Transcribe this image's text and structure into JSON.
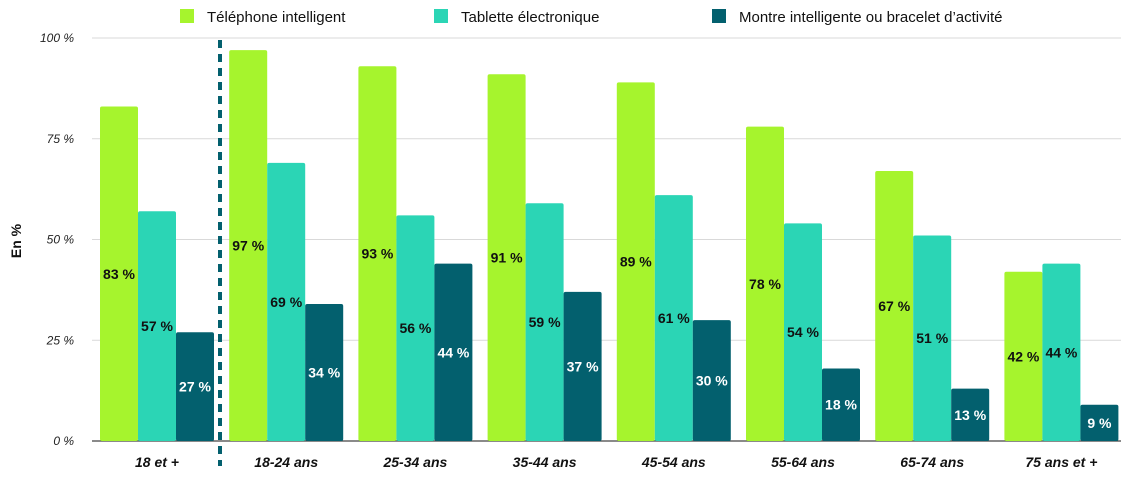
{
  "chart_data": {
    "type": "bar",
    "title": "",
    "xlabel": "",
    "ylabel": "En %",
    "ylim": [
      0,
      100
    ],
    "yticks": [
      0,
      25,
      50,
      75,
      100
    ],
    "ytick_labels": [
      "0 %",
      "25 %",
      "50 %",
      "75 %",
      "100 %"
    ],
    "categories": [
      "18 et +",
      "18-24 ans",
      "25-34 ans",
      "35-44 ans",
      "45-54 ans",
      "55-64 ans",
      "65-74 ans",
      "75 ans et +"
    ],
    "series": [
      {
        "name": "Téléphone intelligent",
        "color": "#a6f42d",
        "label_color": "#111111",
        "values": [
          83,
          97,
          93,
          91,
          89,
          78,
          67,
          42
        ],
        "value_labels": [
          "83 %",
          "97 %",
          "93 %",
          "91 %",
          "89 %",
          "78 %",
          "67 %",
          "42 %"
        ]
      },
      {
        "name": "Tablette électronique",
        "color": "#2bd5b5",
        "label_color": "#111111",
        "values": [
          57,
          69,
          56,
          59,
          61,
          54,
          51,
          44
        ],
        "value_labels": [
          "57 %",
          "69 %",
          "56 %",
          "59 %",
          "61 %",
          "54 %",
          "51 %",
          "44 %"
        ]
      },
      {
        "name": "Montre intelligente ou bracelet d’activité",
        "color": "#03606e",
        "label_color": "#ffffff",
        "values": [
          27,
          34,
          44,
          37,
          30,
          18,
          13,
          9
        ],
        "value_labels": [
          "27 %",
          "34 %",
          "44 %",
          "37 %",
          "30 %",
          "18 %",
          "13 %",
          "9 %"
        ]
      }
    ],
    "grid": true,
    "legend_position": "top",
    "separator_after_category": "18 et +"
  }
}
